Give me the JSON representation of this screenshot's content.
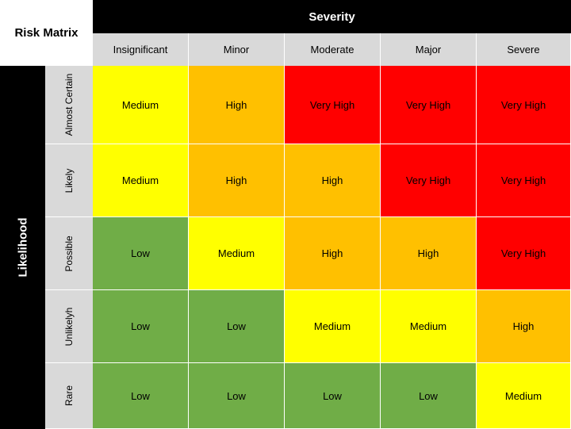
{
  "title": "Risk Matrix",
  "severity_label": "Severity",
  "likelihood_label": "Likelihood",
  "severity_levels": [
    "Insignificant",
    "Minor",
    "Moderate",
    "Major",
    "Severe"
  ],
  "likelihood_levels": [
    "Almost Certain",
    "Likely",
    "Possible",
    "Unlikelyh",
    "Rare"
  ],
  "rating_colors": {
    "Low": "#70ad47",
    "Medium": "#ffff00",
    "High": "#ffc000",
    "Very High": "#ff0000"
  },
  "rows": [
    [
      "Medium",
      "High",
      "Very High",
      "Very High",
      "Very High"
    ],
    [
      "Medium",
      "High",
      "High",
      "Very High",
      "Very High"
    ],
    [
      "Low",
      "Medium",
      "High",
      "High",
      "Very High"
    ],
    [
      "Low",
      "Low",
      "Medium",
      "Medium",
      "High"
    ],
    [
      "Low",
      "Low",
      "Low",
      "Low",
      "Medium"
    ]
  ]
}
